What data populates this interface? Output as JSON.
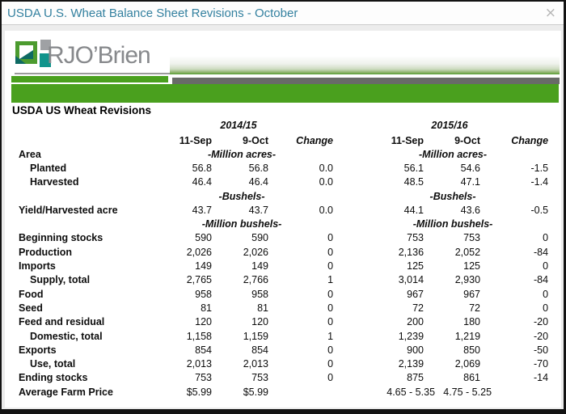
{
  "window": {
    "title": "USDA U.S. Wheat Balance Sheet Revisions - October",
    "close_icon": "×"
  },
  "logo": {
    "brand": "RJO’Brien"
  },
  "heading": "USDA US Wheat Revisions",
  "colors": {
    "accent_green_bar": "#4aa01e",
    "dark_band_gray": "#686b68",
    "title_teal": "#33809f",
    "negative_red": "#e31b1b",
    "positive_green": "#3aa33a",
    "logo_green": "#4c9b2f",
    "logo_teal": "#11948c",
    "logo_dark_teal": "#0e6a63",
    "logo_gray": "#9fa1a4"
  },
  "table": {
    "year_groups": [
      "2014/15",
      "2015/16"
    ],
    "col_headers": [
      "11-Sep",
      "9-Oct",
      "Change"
    ],
    "rows": [
      {
        "label": "Area",
        "unit_g1": "-Million acres-",
        "unit_g2": "-Million acres-"
      },
      {
        "label": "Planted",
        "indent": true,
        "g1": [
          "56.8",
          "56.8",
          "0.0"
        ],
        "g2": [
          "56.1",
          "54.6",
          "-1.5"
        ]
      },
      {
        "label": "Harvested",
        "indent": true,
        "g1": [
          "46.4",
          "46.4",
          "0.0"
        ],
        "g2": [
          "48.5",
          "47.1",
          "-1.4"
        ]
      },
      {
        "label": "",
        "unit_g1": "-Bushels-",
        "unit_g2": "-Bushels-"
      },
      {
        "label": "Yield/Harvested acre",
        "g1": [
          "43.7",
          "43.7",
          "0.0"
        ],
        "g2": [
          "44.1",
          "43.6",
          "-0.5"
        ]
      },
      {
        "label": "",
        "unit_g1": "-Million bushels-",
        "unit_g2": "-Million bushels-"
      },
      {
        "label": "Beginning stocks",
        "g1": [
          "590",
          "590",
          "0"
        ],
        "g2": [
          "753",
          "753",
          "0"
        ]
      },
      {
        "label": "Production",
        "g1": [
          "2,026",
          "2,026",
          "0"
        ],
        "g2": [
          "2,136",
          "2,052",
          "-84"
        ]
      },
      {
        "label": "Imports",
        "g1": [
          "149",
          "149",
          "0"
        ],
        "g2": [
          "125",
          "125",
          "0"
        ]
      },
      {
        "label": "Supply, total",
        "indent": true,
        "g1": [
          "2,765",
          "2,766",
          "1"
        ],
        "g2": [
          "3,014",
          "2,930",
          "-84"
        ],
        "green_change": [
          "g1"
        ]
      },
      {
        "label": "Food",
        "g1": [
          "958",
          "958",
          "0"
        ],
        "g2": [
          "967",
          "967",
          "0"
        ]
      },
      {
        "label": "Seed",
        "g1": [
          "81",
          "81",
          "0"
        ],
        "g2": [
          "72",
          "72",
          "0"
        ]
      },
      {
        "label": "Feed and residual",
        "g1": [
          "120",
          "120",
          "0"
        ],
        "g2": [
          "200",
          "180",
          "-20"
        ]
      },
      {
        "label": "Domestic, total",
        "indent": true,
        "g1": [
          "1,158",
          "1,159",
          "1"
        ],
        "g2": [
          "1,239",
          "1,219",
          "-20"
        ],
        "green_change": [
          "g1"
        ]
      },
      {
        "label": "Exports",
        "g1": [
          "854",
          "854",
          "0"
        ],
        "g2": [
          "900",
          "850",
          "-50"
        ]
      },
      {
        "label": "Use, total",
        "indent": true,
        "g1": [
          "2,013",
          "2,013",
          "0"
        ],
        "g2": [
          "2,139",
          "2,069",
          "-70"
        ]
      },
      {
        "label": "Ending stocks",
        "g1": [
          "753",
          "753",
          "0"
        ],
        "g2": [
          "875",
          "861",
          "-14"
        ]
      },
      {
        "label": "Average Farm Price",
        "g1": [
          "$5.99",
          "$5.99",
          ""
        ],
        "g2": [
          "4.65 - 5.35",
          "4.75 - 5.25",
          ""
        ],
        "shift": true
      }
    ]
  }
}
